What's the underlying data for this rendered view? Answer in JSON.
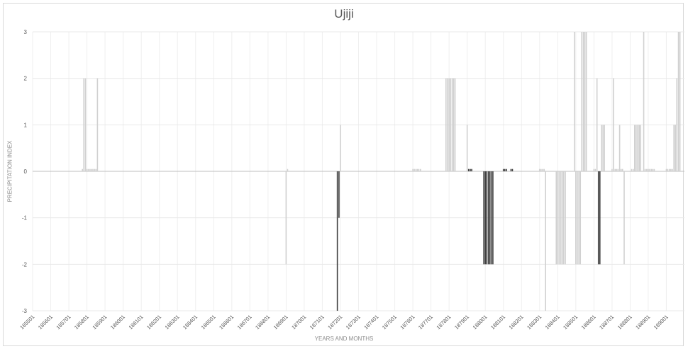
{
  "chart_data": {
    "type": "bar",
    "title": "Ujiji",
    "xlabel": "YEARS AND MONTHS",
    "ylabel": "PRECIPITATION INDEX",
    "ylim": [
      -3,
      3
    ],
    "y_ticks": [
      "-3",
      "-2",
      "-1",
      "0",
      "1",
      "2",
      "3"
    ],
    "x_ticks": [
      "185501",
      "185601",
      "185701",
      "185801",
      "185901",
      "186001",
      "186101",
      "186201",
      "186301",
      "186401",
      "186501",
      "186601",
      "186701",
      "186801",
      "186901",
      "187001",
      "187101",
      "187201",
      "187301",
      "187401",
      "187501",
      "187601",
      "187701",
      "187801",
      "187901",
      "188001",
      "188101",
      "188201",
      "188301",
      "188401",
      "188501",
      "188601",
      "188701",
      "188801",
      "188901",
      "189001"
    ],
    "x_start_year": 1855,
    "x_end_year": 1891,
    "grid": true,
    "series_colors": {
      "light": "#d0d0d0",
      "dark": "#404040"
    },
    "bars": [
      {
        "year": 1857.75,
        "v": 0.05,
        "c": "light"
      },
      {
        "year": 1857.83,
        "v": 2,
        "c": "light"
      },
      {
        "year": 1857.92,
        "v": 2,
        "c": "light"
      },
      {
        "year": 1858.0,
        "v": 0.05,
        "c": "light"
      },
      {
        "year": 1858.08,
        "v": 0.05,
        "c": "light"
      },
      {
        "year": 1858.17,
        "v": 0.05,
        "c": "light"
      },
      {
        "year": 1858.25,
        "v": 0.05,
        "c": "light"
      },
      {
        "year": 1858.33,
        "v": 0.05,
        "c": "light"
      },
      {
        "year": 1858.42,
        "v": 0.05,
        "c": "light"
      },
      {
        "year": 1858.5,
        "v": 0.05,
        "c": "light"
      },
      {
        "year": 1858.58,
        "v": 2,
        "c": "light"
      },
      {
        "year": 1869.0,
        "v": -2,
        "c": "light"
      },
      {
        "year": 1869.08,
        "v": 0.05,
        "c": "light"
      },
      {
        "year": 1871.83,
        "v": -3,
        "c": "dark"
      },
      {
        "year": 1871.92,
        "v": -1,
        "c": "dark"
      },
      {
        "year": 1872.0,
        "v": 1,
        "c": "light"
      },
      {
        "year": 1876.0,
        "v": 0.05,
        "c": "light"
      },
      {
        "year": 1876.08,
        "v": 0.05,
        "c": "light"
      },
      {
        "year": 1876.17,
        "v": 0.05,
        "c": "light"
      },
      {
        "year": 1876.25,
        "v": 0.05,
        "c": "light"
      },
      {
        "year": 1876.33,
        "v": 0.05,
        "c": "light"
      },
      {
        "year": 1876.42,
        "v": 0.05,
        "c": "light"
      },
      {
        "year": 1877.83,
        "v": 2,
        "c": "light"
      },
      {
        "year": 1877.92,
        "v": 2,
        "c": "light"
      },
      {
        "year": 1878.0,
        "v": 2,
        "c": "light"
      },
      {
        "year": 1878.08,
        "v": 2,
        "c": "light"
      },
      {
        "year": 1878.17,
        "v": 2,
        "c": "light"
      },
      {
        "year": 1878.25,
        "v": 2,
        "c": "light"
      },
      {
        "year": 1878.33,
        "v": 2,
        "c": "light"
      },
      {
        "year": 1879.0,
        "v": 1,
        "c": "light"
      },
      {
        "year": 1879.08,
        "v": 0.05,
        "c": "dark"
      },
      {
        "year": 1879.17,
        "v": 0.05,
        "c": "dark"
      },
      {
        "year": 1879.25,
        "v": 0.05,
        "c": "dark"
      },
      {
        "year": 1879.92,
        "v": -2,
        "c": "dark"
      },
      {
        "year": 1880.0,
        "v": -2,
        "c": "dark"
      },
      {
        "year": 1880.08,
        "v": -2,
        "c": "dark"
      },
      {
        "year": 1880.17,
        "v": -2,
        "c": "dark"
      },
      {
        "year": 1880.25,
        "v": -2,
        "c": "dark"
      },
      {
        "year": 1880.33,
        "v": -2,
        "c": "dark"
      },
      {
        "year": 1880.42,
        "v": -2,
        "c": "dark"
      },
      {
        "year": 1881.0,
        "v": 0.05,
        "c": "dark"
      },
      {
        "year": 1881.08,
        "v": 0.05,
        "c": "dark"
      },
      {
        "year": 1881.17,
        "v": 0.05,
        "c": "dark"
      },
      {
        "year": 1881.42,
        "v": 0.05,
        "c": "dark"
      },
      {
        "year": 1881.5,
        "v": 0.05,
        "c": "dark"
      },
      {
        "year": 1883.0,
        "v": 0.05,
        "c": "light"
      },
      {
        "year": 1883.08,
        "v": 0.05,
        "c": "light"
      },
      {
        "year": 1883.17,
        "v": 0.05,
        "c": "light"
      },
      {
        "year": 1883.25,
        "v": 0.05,
        "c": "light"
      },
      {
        "year": 1883.33,
        "v": -3,
        "c": "light"
      },
      {
        "year": 1883.92,
        "v": -2,
        "c": "light"
      },
      {
        "year": 1884.0,
        "v": -2,
        "c": "light"
      },
      {
        "year": 1884.08,
        "v": -2,
        "c": "light"
      },
      {
        "year": 1884.17,
        "v": -2,
        "c": "light"
      },
      {
        "year": 1884.25,
        "v": -2,
        "c": "light"
      },
      {
        "year": 1884.33,
        "v": -2,
        "c": "light"
      },
      {
        "year": 1884.42,
        "v": -2,
        "c": "light"
      },
      {
        "year": 1884.92,
        "v": 3,
        "c": "light"
      },
      {
        "year": 1885.0,
        "v": -2,
        "c": "light"
      },
      {
        "year": 1885.08,
        "v": -2,
        "c": "light"
      },
      {
        "year": 1885.17,
        "v": -2,
        "c": "light"
      },
      {
        "year": 1885.25,
        "v": -2,
        "c": "light"
      },
      {
        "year": 1885.33,
        "v": 3,
        "c": "light"
      },
      {
        "year": 1885.42,
        "v": 3,
        "c": "light"
      },
      {
        "year": 1885.5,
        "v": 3,
        "c": "light"
      },
      {
        "year": 1885.58,
        "v": 3,
        "c": "light"
      },
      {
        "year": 1886.0,
        "v": 0.05,
        "c": "light"
      },
      {
        "year": 1886.08,
        "v": 0.05,
        "c": "light"
      },
      {
        "year": 1886.17,
        "v": 2,
        "c": "light"
      },
      {
        "year": 1886.25,
        "v": -2,
        "c": "dark"
      },
      {
        "year": 1886.33,
        "v": -2,
        "c": "dark"
      },
      {
        "year": 1886.42,
        "v": 1,
        "c": "light"
      },
      {
        "year": 1886.5,
        "v": 1,
        "c": "light"
      },
      {
        "year": 1886.58,
        "v": 1,
        "c": "light"
      },
      {
        "year": 1887.0,
        "v": 0.05,
        "c": "light"
      },
      {
        "year": 1887.08,
        "v": 2,
        "c": "light"
      },
      {
        "year": 1887.17,
        "v": 0.05,
        "c": "light"
      },
      {
        "year": 1887.25,
        "v": 0.05,
        "c": "light"
      },
      {
        "year": 1887.33,
        "v": 0.05,
        "c": "light"
      },
      {
        "year": 1887.42,
        "v": 1,
        "c": "light"
      },
      {
        "year": 1887.5,
        "v": 0.05,
        "c": "light"
      },
      {
        "year": 1887.58,
        "v": 0.05,
        "c": "light"
      },
      {
        "year": 1887.67,
        "v": -2,
        "c": "light"
      },
      {
        "year": 1888.08,
        "v": 0.05,
        "c": "light"
      },
      {
        "year": 1888.17,
        "v": 0.05,
        "c": "light"
      },
      {
        "year": 1888.25,
        "v": 1,
        "c": "light"
      },
      {
        "year": 1888.33,
        "v": 1,
        "c": "light"
      },
      {
        "year": 1888.42,
        "v": 1,
        "c": "light"
      },
      {
        "year": 1888.5,
        "v": 1,
        "c": "light"
      },
      {
        "year": 1888.58,
        "v": 1,
        "c": "light"
      },
      {
        "year": 1888.75,
        "v": 3,
        "c": "light"
      },
      {
        "year": 1888.83,
        "v": 0.05,
        "c": "light"
      },
      {
        "year": 1888.92,
        "v": 0.05,
        "c": "light"
      },
      {
        "year": 1889.0,
        "v": 0.05,
        "c": "light"
      },
      {
        "year": 1889.08,
        "v": 0.05,
        "c": "light"
      },
      {
        "year": 1889.17,
        "v": 0.05,
        "c": "light"
      },
      {
        "year": 1889.25,
        "v": 0.05,
        "c": "light"
      },
      {
        "year": 1889.33,
        "v": 0.05,
        "c": "light"
      },
      {
        "year": 1890.0,
        "v": 0.05,
        "c": "light"
      },
      {
        "year": 1890.08,
        "v": 0.05,
        "c": "light"
      },
      {
        "year": 1890.17,
        "v": 0.05,
        "c": "light"
      },
      {
        "year": 1890.25,
        "v": 0.05,
        "c": "light"
      },
      {
        "year": 1890.33,
        "v": 0.05,
        "c": "light"
      },
      {
        "year": 1890.42,
        "v": 1,
        "c": "light"
      },
      {
        "year": 1890.5,
        "v": 1,
        "c": "light"
      },
      {
        "year": 1890.58,
        "v": 2,
        "c": "light"
      },
      {
        "year": 1890.67,
        "v": 3,
        "c": "light"
      },
      {
        "year": 1890.75,
        "v": 3,
        "c": "light"
      }
    ]
  }
}
